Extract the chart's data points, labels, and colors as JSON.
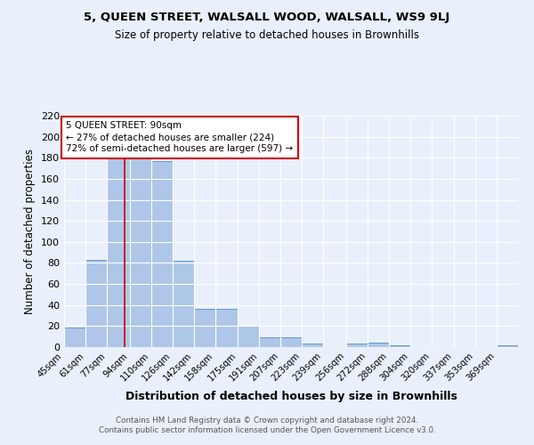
{
  "title1": "5, QUEEN STREET, WALSALL WOOD, WALSALL, WS9 9LJ",
  "title2": "Size of property relative to detached houses in Brownhills",
  "xlabel": "Distribution of detached houses by size in Brownhills",
  "ylabel": "Number of detached properties",
  "footer1": "Contains HM Land Registry data © Crown copyright and database right 2024.",
  "footer2": "Contains public sector information licensed under the Open Government Licence v3.0.",
  "bin_labels": [
    "45sqm",
    "61sqm",
    "77sqm",
    "94sqm",
    "110sqm",
    "126sqm",
    "142sqm",
    "158sqm",
    "175sqm",
    "191sqm",
    "207sqm",
    "223sqm",
    "239sqm",
    "256sqm",
    "272sqm",
    "288sqm",
    "304sqm",
    "320sqm",
    "337sqm",
    "353sqm",
    "369sqm"
  ],
  "bar_values": [
    19,
    83,
    180,
    181,
    177,
    82,
    36,
    36,
    20,
    9,
    9,
    3,
    0,
    3,
    4,
    2,
    0,
    0,
    0,
    0,
    2
  ],
  "bar_color": "#aec6e8",
  "bar_edge_color": "#5b9bd5",
  "background_color": "#eaf0fb",
  "grid_color": "#ffffff",
  "red_line_x": 90,
  "annotation_text": "5 QUEEN STREET: 90sqm\n← 27% of detached houses are smaller (224)\n72% of semi-detached houses are larger (597) →",
  "annotation_box_color": "#ffffff",
  "annotation_box_edge": "#cc0000",
  "ylim": [
    0,
    220
  ],
  "yticks": [
    0,
    20,
    40,
    60,
    80,
    100,
    120,
    140,
    160,
    180,
    200,
    220
  ],
  "bin_edges": [
    45,
    61,
    77,
    94,
    110,
    126,
    142,
    158,
    175,
    191,
    207,
    223,
    239,
    256,
    272,
    288,
    304,
    320,
    337,
    353,
    369,
    385
  ]
}
